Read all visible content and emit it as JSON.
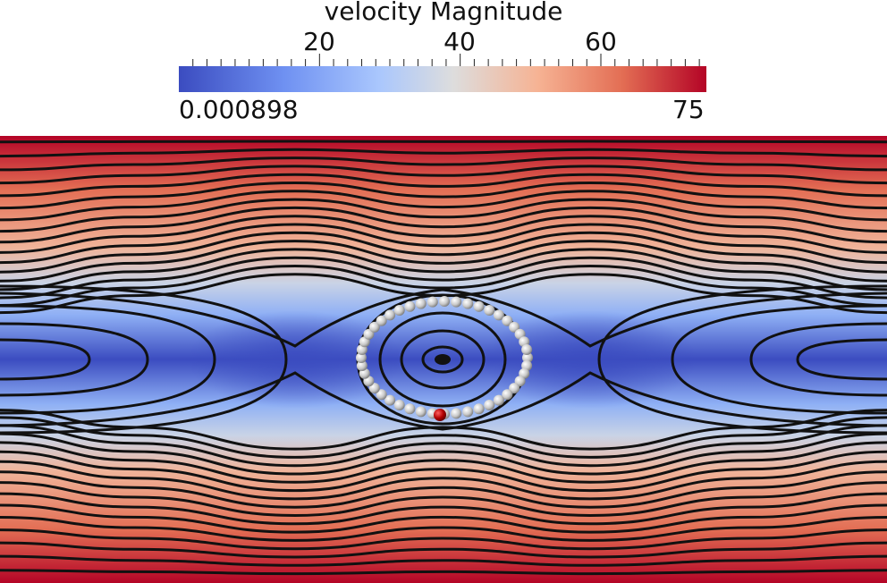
{
  "legend": {
    "title": "velocity Magnitude",
    "major_ticks": [
      {
        "label": "20",
        "value": 20
      },
      {
        "label": "40",
        "value": 40
      },
      {
        "label": "60",
        "value": 60
      }
    ],
    "range_min_label": "0.000898",
    "range_max_label": "75",
    "range": [
      0.000898,
      75
    ],
    "colormap_colors": [
      "#3b4cc0",
      "#aac7fd",
      "#dddddd",
      "#f6b394",
      "#b40426"
    ]
  },
  "colors": {
    "streamline": "#111111",
    "particle": "#c8c8c8",
    "highlight_particle": "#b00000"
  },
  "scene": {
    "particle_count": 44
  }
}
